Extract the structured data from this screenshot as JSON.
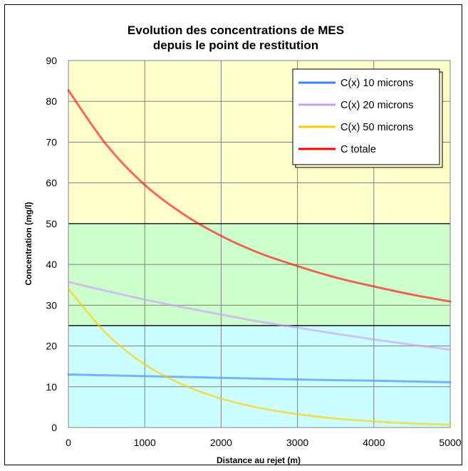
{
  "chart_data": {
    "type": "line",
    "title": [
      "Evolution des concentrations  de MES",
      "depuis le point de restitution"
    ],
    "xlabel": "Distance au rejet (m)",
    "ylabel": "Concentration (mg/l)",
    "xlim": [
      0,
      5000
    ],
    "ylim": [
      0,
      90
    ],
    "xticks": [
      "0",
      "1000",
      "2000",
      "3000",
      "4000",
      "5000"
    ],
    "yticks": [
      "0",
      "10",
      "20",
      "30",
      "40",
      "50",
      "60",
      "70",
      "80",
      "90"
    ],
    "grid": true,
    "legend_position": "top-right",
    "bands": [
      {
        "from": 0,
        "to": 25,
        "color": "#ccffff"
      },
      {
        "from": 25,
        "to": 50,
        "color": "#ccffcc"
      },
      {
        "from": 50,
        "to": 90,
        "color": "#ffffcc"
      }
    ],
    "x": [
      0,
      500,
      1000,
      1500,
      2000,
      2500,
      3000,
      3500,
      4000,
      4500,
      5000
    ],
    "series": [
      {
        "name": "C(x) 10 microns",
        "color": "#3f7fff",
        "values": [
          13.0,
          12.8,
          12.6,
          12.4,
          12.2,
          12.0,
          11.8,
          11.6,
          11.5,
          11.3,
          11.1
        ]
      },
      {
        "name": "C(x) 20 microns",
        "color": "#cc99ff",
        "values": [
          35.7,
          33.5,
          31.4,
          29.5,
          27.7,
          26.0,
          24.5,
          23.0,
          21.6,
          20.3,
          19.1
        ]
      },
      {
        "name": "C(x) 50 microns",
        "color": "#ffcc00",
        "values": [
          34.0,
          23.0,
          15.5,
          10.5,
          7.1,
          4.8,
          3.3,
          2.2,
          1.5,
          1.0,
          0.7
        ]
      },
      {
        "name": "C totale",
        "color": "#ff0000",
        "values": [
          82.7,
          69.3,
          59.5,
          52.4,
          47.0,
          42.8,
          39.6,
          36.8,
          34.6,
          32.6,
          30.9
        ]
      }
    ]
  }
}
